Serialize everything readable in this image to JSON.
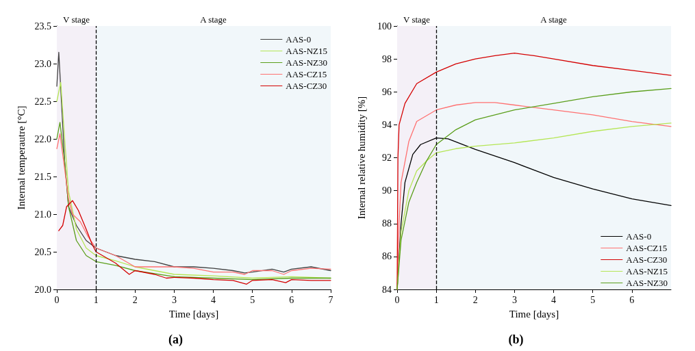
{
  "chart_data": [
    {
      "type": "line",
      "xlabel": "Time [days]",
      "ylabel": "Internal temperautre [°C]",
      "annotations": [
        "(a)"
      ],
      "xlim": [
        0,
        7
      ],
      "xticks": [
        0,
        1,
        2,
        3,
        4,
        5,
        6,
        7
      ],
      "ylim": [
        20,
        23.5
      ],
      "yticks": [
        {
          "value": 20,
          "label": "20.0"
        },
        20.5,
        {
          "value": 21,
          "label": "21.0"
        },
        21.5,
        {
          "value": 22,
          "label": "22.0"
        },
        22.5,
        {
          "value": 23,
          "label": "23.0"
        },
        23.5
      ],
      "grid": false,
      "legend": "top right",
      "marker": "none",
      "line_style": "solid",
      "bands": [
        {
          "axis": "x",
          "from": 0,
          "to": 1,
          "label": "V stage",
          "color": "#f4f0f7"
        },
        {
          "axis": "x",
          "from": 1,
          "to": 7,
          "label": "A stage",
          "color": "#f1f7fa"
        }
      ],
      "ref_lines": [
        {
          "axis": "x",
          "value": 1,
          "label": null,
          "color": "#000000",
          "line_style": "dashed"
        }
      ],
      "series": [
        {
          "name": "AAS-0",
          "color": "#404040",
          "x": [
            0,
            0.05,
            0.2,
            0.3,
            0.5,
            0.75,
            1,
            1.5,
            2,
            2.5,
            3,
            3.5,
            4,
            4.5,
            4.8,
            5,
            5.5,
            5.8,
            6,
            6.5,
            7
          ],
          "values": [
            22.7,
            23.15,
            21.7,
            21.1,
            20.85,
            20.65,
            20.55,
            20.45,
            20.4,
            20.37,
            20.3,
            20.3,
            20.28,
            20.25,
            20.22,
            20.23,
            20.27,
            20.23,
            20.27,
            20.3,
            20.25
          ]
        },
        {
          "name": "AAS-NZ15",
          "color": "#b5e655",
          "x": [
            0,
            0.1,
            0.2,
            0.3,
            0.5,
            0.75,
            1,
            1.5,
            2,
            2.5,
            3,
            4,
            5,
            6,
            7
          ],
          "values": [
            22.5,
            22.75,
            22.0,
            21.3,
            20.8,
            20.55,
            20.45,
            20.38,
            20.3,
            20.25,
            20.2,
            20.18,
            20.15,
            20.17,
            20.15
          ]
        },
        {
          "name": "AAS-NZ30",
          "color": "#5a9e1a",
          "x": [
            0,
            0.08,
            0.2,
            0.3,
            0.5,
            0.75,
            1,
            1.5,
            2,
            3,
            4,
            5,
            6,
            7
          ],
          "values": [
            22.0,
            22.22,
            21.7,
            21.1,
            20.65,
            20.45,
            20.37,
            20.32,
            20.25,
            20.17,
            20.15,
            20.13,
            20.15,
            20.15
          ]
        },
        {
          "name": "AAS-CZ15",
          "color": "#ff7070",
          "x": [
            0,
            0.08,
            0.2,
            0.3,
            0.4,
            0.6,
            0.8,
            1,
            1.5,
            2,
            2.5,
            3,
            3.5,
            4,
            4.5,
            4.8,
            5,
            5.5,
            5.8,
            6,
            6.5,
            7
          ],
          "values": [
            21.87,
            22.07,
            21.6,
            21.2,
            21.0,
            20.9,
            20.7,
            20.55,
            20.45,
            20.3,
            20.3,
            20.3,
            20.28,
            20.23,
            20.23,
            20.2,
            20.25,
            20.25,
            20.2,
            20.25,
            20.28,
            20.27
          ]
        },
        {
          "name": "AAS-CZ30",
          "color": "#d40000",
          "x": [
            0.05,
            0.15,
            0.25,
            0.4,
            0.55,
            0.75,
            0.9,
            1,
            1.5,
            1.85,
            2,
            2.5,
            2.8,
            3,
            3.5,
            4,
            4.5,
            4.85,
            5,
            5.5,
            5.85,
            6,
            6.5,
            7
          ],
          "values": [
            20.78,
            20.85,
            21.1,
            21.18,
            21.05,
            20.8,
            20.6,
            20.5,
            20.35,
            20.2,
            20.25,
            20.2,
            20.15,
            20.16,
            20.15,
            20.13,
            20.12,
            20.07,
            20.12,
            20.13,
            20.09,
            20.13,
            20.12,
            20.12
          ]
        }
      ]
    },
    {
      "type": "line",
      "xlabel": "Time [days]",
      "ylabel": "Internal relative humidity [%]",
      "annotations": [
        "(b)"
      ],
      "xlim": [
        0,
        7
      ],
      "xticks": [
        0,
        1,
        2,
        3,
        4,
        5,
        6
      ],
      "ylim": [
        84,
        100
      ],
      "yticks": [
        84,
        86,
        88,
        90,
        92,
        94,
        96,
        98,
        100
      ],
      "grid": false,
      "legend": "bottom right",
      "marker": "none",
      "line_style": "solid",
      "bands": [
        {
          "axis": "x",
          "from": 0,
          "to": 1,
          "label": "V stage",
          "color": "#f4f0f7"
        },
        {
          "axis": "x",
          "from": 1,
          "to": 7,
          "label": "A stage",
          "color": "#f1f7fa"
        }
      ],
      "ref_lines": [
        {
          "axis": "x",
          "value": 1,
          "label": null,
          "color": "#000000",
          "line_style": "dashed"
        }
      ],
      "series": [
        {
          "name": "AAS-0",
          "color": "#000000",
          "x": [
            0,
            0.1,
            0.2,
            0.4,
            0.6,
            1,
            1.3,
            2,
            3,
            4,
            5,
            6,
            7
          ],
          "values": [
            84,
            88,
            90.5,
            92.2,
            92.8,
            93.2,
            93.15,
            92.5,
            91.7,
            90.8,
            90.1,
            89.5,
            89.1
          ]
        },
        {
          "name": "AAS-CZ15",
          "color": "#ff7070",
          "x": [
            0,
            0.05,
            0.1,
            0.3,
            0.5,
            1,
            1.5,
            2,
            2.5,
            3,
            4,
            5,
            6,
            7
          ],
          "values": [
            84,
            88,
            90.5,
            93,
            94.2,
            94.9,
            95.2,
            95.35,
            95.35,
            95.2,
            94.9,
            94.6,
            94.2,
            93.9
          ]
        },
        {
          "name": "AAS-CZ30",
          "color": "#d40000",
          "x": [
            0,
            0.02,
            0.05,
            0.2,
            0.5,
            1,
            1.5,
            2,
            2.5,
            3,
            3.5,
            4,
            5,
            6,
            7
          ],
          "values": [
            84,
            92,
            94,
            95.3,
            96.5,
            97.2,
            97.7,
            98.0,
            98.2,
            98.35,
            98.2,
            98.0,
            97.6,
            97.3,
            97.0
          ]
        },
        {
          "name": "AAS-NZ15",
          "color": "#b5e655",
          "x": [
            0,
            0.1,
            0.3,
            0.5,
            0.75,
            1,
            1.5,
            2,
            3,
            4,
            5,
            6,
            7
          ],
          "values": [
            84,
            87.5,
            90,
            91.2,
            91.8,
            92.3,
            92.55,
            92.7,
            92.9,
            93.2,
            93.6,
            93.9,
            94.1
          ]
        },
        {
          "name": "AAS-NZ30",
          "color": "#5a9e1a",
          "x": [
            0,
            0.1,
            0.3,
            0.5,
            0.75,
            1,
            1.5,
            2,
            3,
            4,
            5,
            6,
            7
          ],
          "values": [
            84,
            87,
            89.3,
            90.5,
            91.8,
            92.8,
            93.7,
            94.3,
            94.9,
            95.3,
            95.7,
            96.0,
            96.2
          ]
        }
      ]
    }
  ]
}
